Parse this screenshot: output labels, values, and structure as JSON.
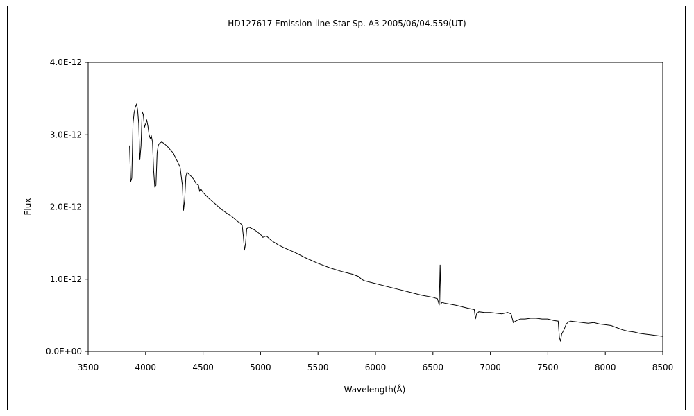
{
  "chart_data": {
    "type": "line",
    "title": "HD127617    Emission-line Star    Sp. A3    2005/06/04.559(UT)",
    "xlabel": "Wavelength(Å)",
    "ylabel": "Flux",
    "xlim": [
      3500,
      8500
    ],
    "ylim": [
      0,
      4e-12
    ],
    "x_ticks": [
      3500,
      4000,
      4500,
      5000,
      5500,
      6000,
      6500,
      7000,
      7500,
      8000,
      8500
    ],
    "y_ticks": [
      0,
      1e-12,
      2e-12,
      3e-12,
      4e-12
    ],
    "x_tick_labels": [
      "3500",
      "4000",
      "4500",
      "5000",
      "5500",
      "6000",
      "6500",
      "7000",
      "7500",
      "8000",
      "8500"
    ],
    "y_tick_labels": [
      "0.0E+00",
      "1.0E-12",
      "2.0E-12",
      "3.0E-12",
      "4.0E-12"
    ],
    "grid": false,
    "legend": "none",
    "line_color": "#000000",
    "series": [
      {
        "x": [
          3860,
          3870,
          3880,
          3890,
          3900,
          3910,
          3920,
          3930,
          3940,
          3950,
          3960,
          3970,
          3980,
          3990,
          4000,
          4010,
          4020,
          4030,
          4040,
          4050,
          4060,
          4070,
          4080,
          4090,
          4100,
          4110,
          4120,
          4140,
          4160,
          4180,
          4200,
          4220,
          4240,
          4260,
          4280,
          4300,
          4320,
          4330,
          4340,
          4350,
          4360,
          4380,
          4400,
          4420,
          4440,
          4460,
          4470,
          4480,
          4500,
          4550,
          4600,
          4650,
          4700,
          4750,
          4800,
          4820,
          4840,
          4850,
          4860,
          4870,
          4880,
          4900,
          4950,
          5000,
          5020,
          5050,
          5100,
          5150,
          5200,
          5300,
          5400,
          5500,
          5600,
          5700,
          5800,
          5850,
          5880,
          5900,
          6000,
          6100,
          6200,
          6300,
          6400,
          6500,
          6540,
          6555,
          6563,
          6570,
          6580,
          6600,
          6700,
          6800,
          6860,
          6870,
          6880,
          6900,
          6950,
          7000,
          7050,
          7100,
          7150,
          7180,
          7200,
          7220,
          7260,
          7300,
          7350,
          7400,
          7450,
          7500,
          7550,
          7590,
          7600,
          7610,
          7620,
          7640,
          7660,
          7680,
          7700,
          7750,
          7800,
          7850,
          7900,
          7950,
          8000,
          8050,
          8100,
          8150,
          8200,
          8250,
          8300,
          8350,
          8400,
          8450,
          8500
        ],
        "values": [
          2.85e-12,
          2.35e-12,
          2.4e-12,
          3.15e-12,
          3.3e-12,
          3.38e-12,
          3.42e-12,
          3.35e-12,
          3.15e-12,
          2.65e-12,
          2.85e-12,
          3.32e-12,
          3.28e-12,
          3.1e-12,
          3.15e-12,
          3.2e-12,
          3.12e-12,
          3e-12,
          2.95e-12,
          2.98e-12,
          2.9e-12,
          2.5e-12,
          2.28e-12,
          2.3e-12,
          2.75e-12,
          2.85e-12,
          2.88e-12,
          2.9e-12,
          2.88e-12,
          2.85e-12,
          2.82e-12,
          2.78e-12,
          2.75e-12,
          2.68e-12,
          2.62e-12,
          2.55e-12,
          2.3e-12,
          1.95e-12,
          2.1e-12,
          2.42e-12,
          2.48e-12,
          2.45e-12,
          2.42e-12,
          2.38e-12,
          2.32e-12,
          2.3e-12,
          2.22e-12,
          2.25e-12,
          2.2e-12,
          2.12e-12,
          2.05e-12,
          1.98e-12,
          1.92e-12,
          1.87e-12,
          1.8e-12,
          1.78e-12,
          1.75e-12,
          1.6e-12,
          1.4e-12,
          1.5e-12,
          1.7e-12,
          1.72e-12,
          1.68e-12,
          1.62e-12,
          1.58e-12,
          1.6e-12,
          1.53e-12,
          1.48e-12,
          1.44e-12,
          1.37e-12,
          1.29e-12,
          1.22e-12,
          1.16e-12,
          1.11e-12,
          1.07e-12,
          1.04e-12,
          1e-12,
          9.8e-13,
          9.4e-13,
          9e-13,
          8.6e-13,
          8.2e-13,
          7.8e-13,
          7.5e-13,
          7.3e-13,
          6.4e-13,
          1.2e-12,
          6.6e-13,
          6.8e-13,
          6.7e-13,
          6.4e-13,
          6e-13,
          5.8e-13,
          4.5e-13,
          5.2e-13,
          5.5e-13,
          5.4e-13,
          5.4e-13,
          5.3e-13,
          5.2e-13,
          5.4e-13,
          5.2e-13,
          4e-13,
          4.2e-13,
          4.5e-13,
          4.5e-13,
          4.6e-13,
          4.6e-13,
          4.5e-13,
          4.5e-13,
          4.3e-13,
          4.2e-13,
          2e-13,
          1.4e-13,
          2.4e-13,
          3e-13,
          3.8e-13,
          4.1e-13,
          4.2e-13,
          4.1e-13,
          4e-13,
          3.9e-13,
          4e-13,
          3.8e-13,
          3.7e-13,
          3.6e-13,
          3.3e-13,
          3e-13,
          2.8e-13,
          2.7e-13,
          2.5e-13,
          2.4e-13,
          2.3e-13,
          2.2e-13,
          2.1e-13
        ]
      }
    ]
  }
}
